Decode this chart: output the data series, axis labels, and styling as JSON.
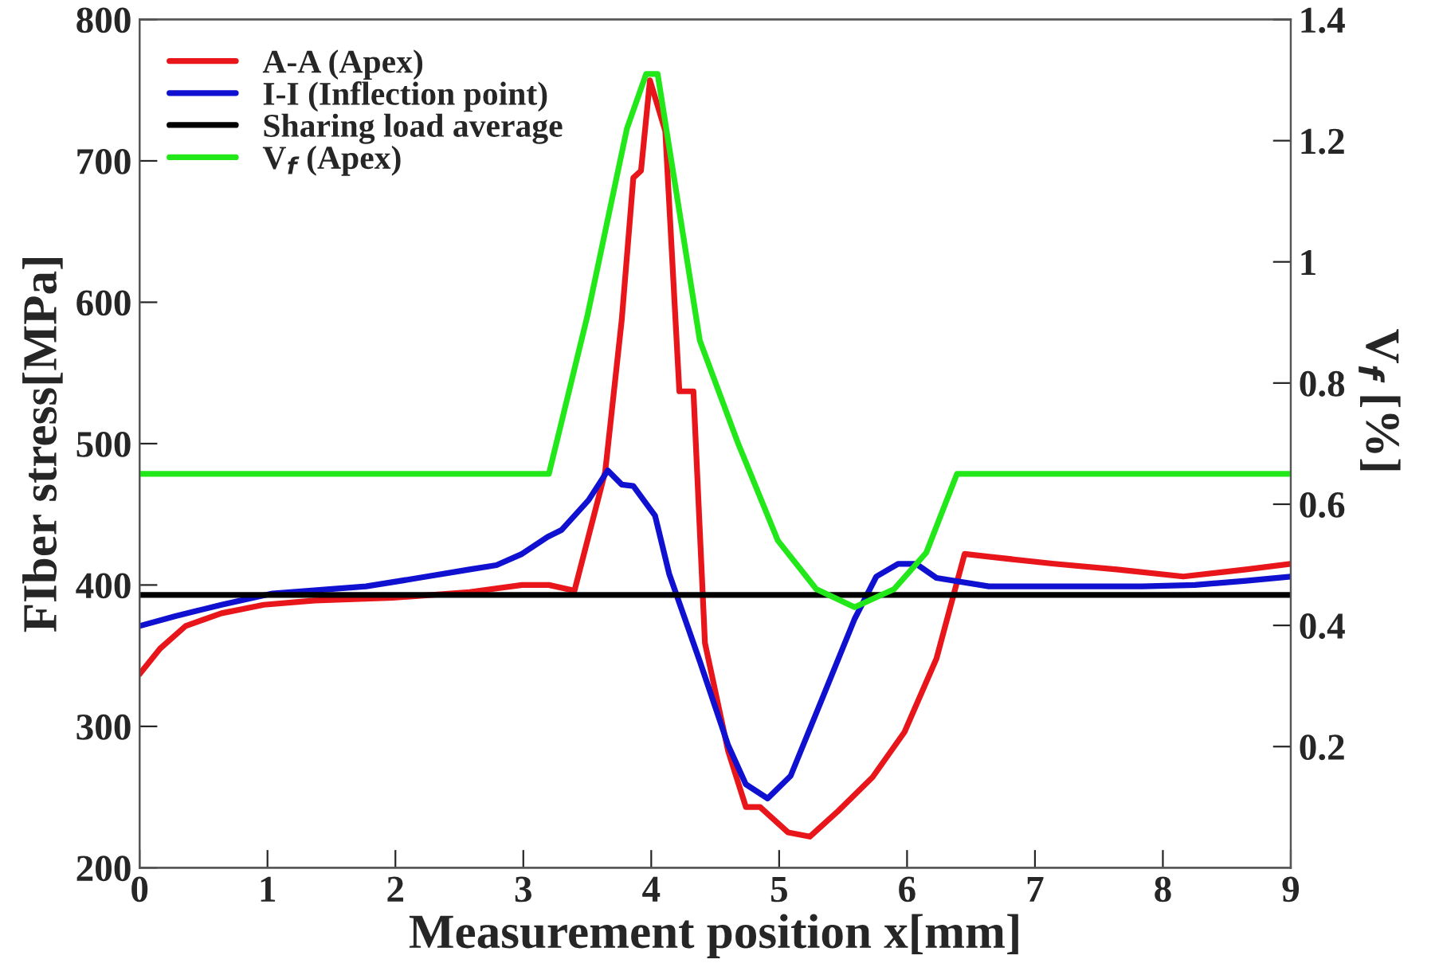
{
  "chart_data": {
    "type": "line",
    "xlabel": "Measurement position x[mm]",
    "ylabel": "FIber stress[MPa]",
    "y2label": "V$_{f}$ [%]",
    "xlim": [
      0,
      9
    ],
    "xticks": [
      0,
      1,
      2,
      3,
      4,
      5,
      6,
      7,
      8,
      9
    ],
    "ylim": [
      200,
      800
    ],
    "yticks": [
      200,
      300,
      400,
      500,
      600,
      700,
      800
    ],
    "y2lim": [
      0,
      1.4
    ],
    "y2ticks": [
      0.2,
      0.4,
      0.6,
      0.8,
      1,
      1.2,
      1.4
    ],
    "legend": "top left",
    "grid": false,
    "series": [
      {
        "name": "A-A (Apex)",
        "color": "#e8161b",
        "x": [
          0,
          0.16,
          0.36,
          0.64,
          0.97,
          1.37,
          1.98,
          2.58,
          2.99,
          3.2,
          3.4,
          3.64,
          3.77,
          3.86,
          3.92,
          3.99,
          4.11,
          4.22,
          4.33,
          4.42,
          4.6,
          4.74,
          4.85,
          5.07,
          5.24,
          5.46,
          5.73,
          5.98,
          6.23,
          6.45,
          6.64,
          7.15,
          7.64,
          8.16,
          8.65,
          9
        ],
        "values": [
          337,
          355,
          371,
          380,
          386,
          389,
          391,
          395,
          400,
          400,
          396,
          480,
          588,
          688,
          693,
          757,
          721,
          537,
          537,
          359,
          283,
          243,
          243,
          225,
          222,
          240,
          264,
          296,
          348,
          422,
          420,
          415,
          411,
          406,
          411,
          415
        ]
      },
      {
        "name": "I-I (Inflection point)",
        "color": "#1010d0",
        "x": [
          0,
          0.28,
          0.64,
          1.04,
          1.77,
          2.18,
          2.58,
          2.79,
          2.99,
          3.19,
          3.3,
          3.51,
          3.66,
          3.77,
          3.86,
          4.03,
          4.14,
          4.38,
          4.6,
          4.74,
          4.91,
          5.09,
          5.37,
          5.59,
          5.76,
          5.93,
          6.07,
          6.23,
          6.64,
          7.84,
          8.25,
          8.65,
          9
        ],
        "values": [
          371,
          378,
          386,
          394,
          399,
          405,
          411,
          414,
          422,
          434,
          439,
          460,
          481,
          471,
          470,
          449,
          408,
          346,
          287,
          259,
          249,
          265,
          327,
          376,
          406,
          415,
          415,
          405,
          399,
          399,
          400,
          403,
          406
        ]
      },
      {
        "name": "Sharing load average",
        "color": "#000000",
        "x": [
          0,
          9
        ],
        "values": [
          393,
          393
        ]
      },
      {
        "name": "V$_{f}$ (Apex)",
        "color": "#22e81a",
        "axis": "y2",
        "x": [
          0,
          3.2,
          3.5,
          3.81,
          3.96,
          4.05,
          4.38,
          4.68,
          4.99,
          5.29,
          5.59,
          5.9,
          6.15,
          6.39,
          9
        ],
        "values": [
          0.65,
          0.65,
          0.91,
          1.22,
          1.31,
          1.31,
          0.87,
          0.7,
          0.54,
          0.46,
          0.43,
          0.46,
          0.52,
          0.65,
          0.65
        ]
      }
    ]
  }
}
